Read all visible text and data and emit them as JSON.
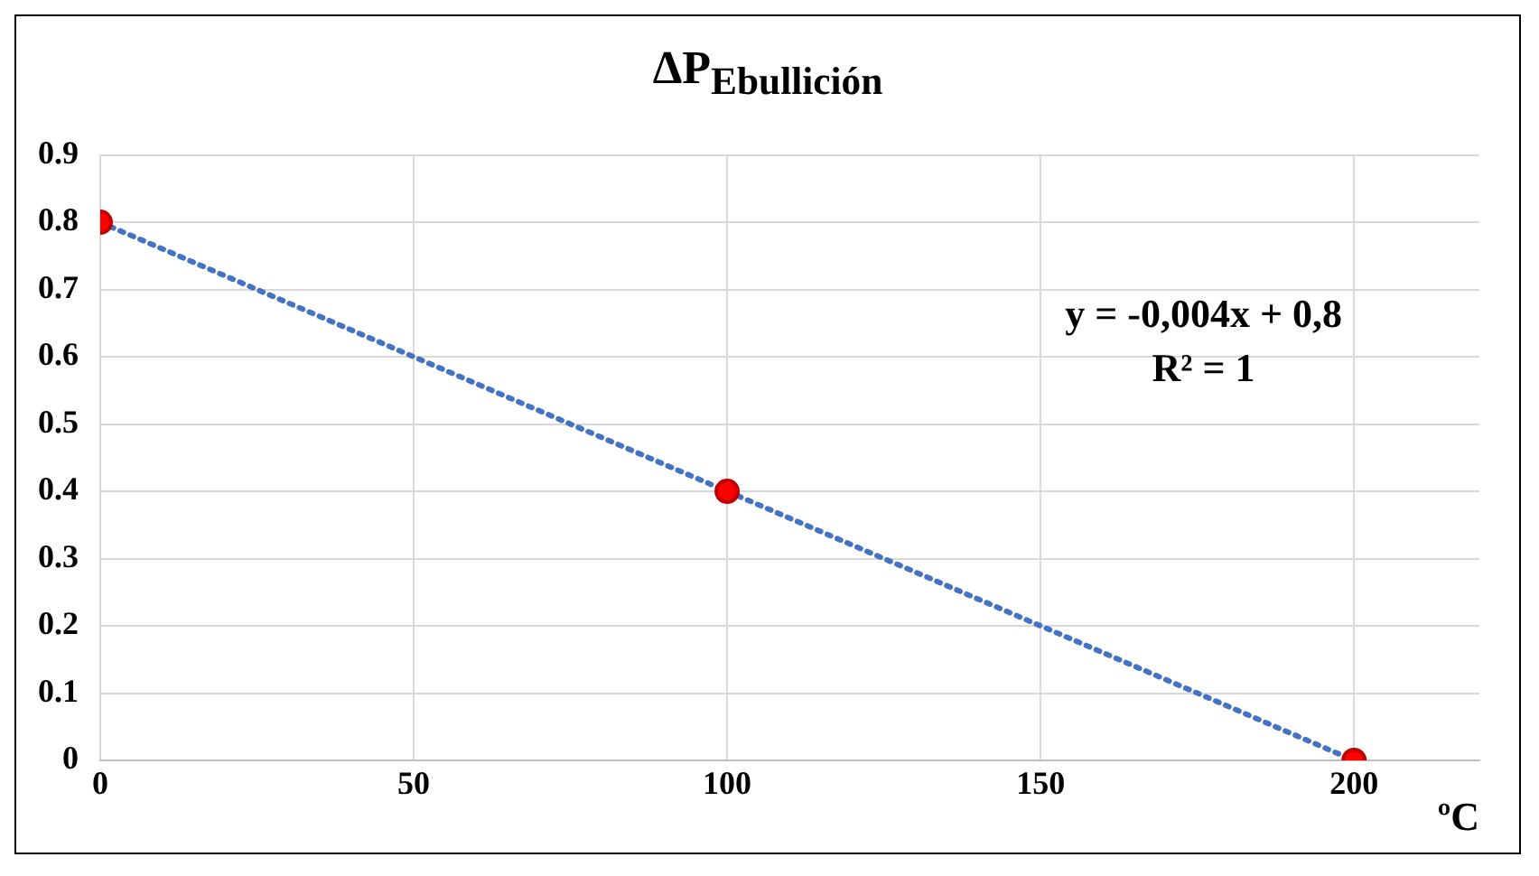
{
  "chart_data": {
    "type": "scatter",
    "title": "ΔP$_{Ebullición}$",
    "xlabel": "ºC",
    "series": [
      {
        "color": "#ff0000",
        "x": [
          0,
          100,
          200
        ],
        "values": [
          0.8,
          0.4,
          0
        ]
      },
      {
        "type": "line",
        "color": "#4472c4",
        "x": [
          0,
          200
        ],
        "values": [
          0.8,
          0
        ],
        "line_style": "dotted",
        "marker": "none"
      }
    ],
    "xlim": [
      0,
      220
    ],
    "xticks": [
      0,
      50,
      100,
      150,
      200
    ],
    "ylim": [
      0,
      0.9
    ],
    "yticks": [
      0,
      0.1,
      0.2,
      0.3,
      0.4,
      0.5,
      0.6,
      0.7,
      0.8,
      0.9
    ],
    "grid": true,
    "legend": false,
    "marker": "circle",
    "annotations": [
      "y = -0,004x + 0,8",
      "R² = 1"
    ]
  }
}
